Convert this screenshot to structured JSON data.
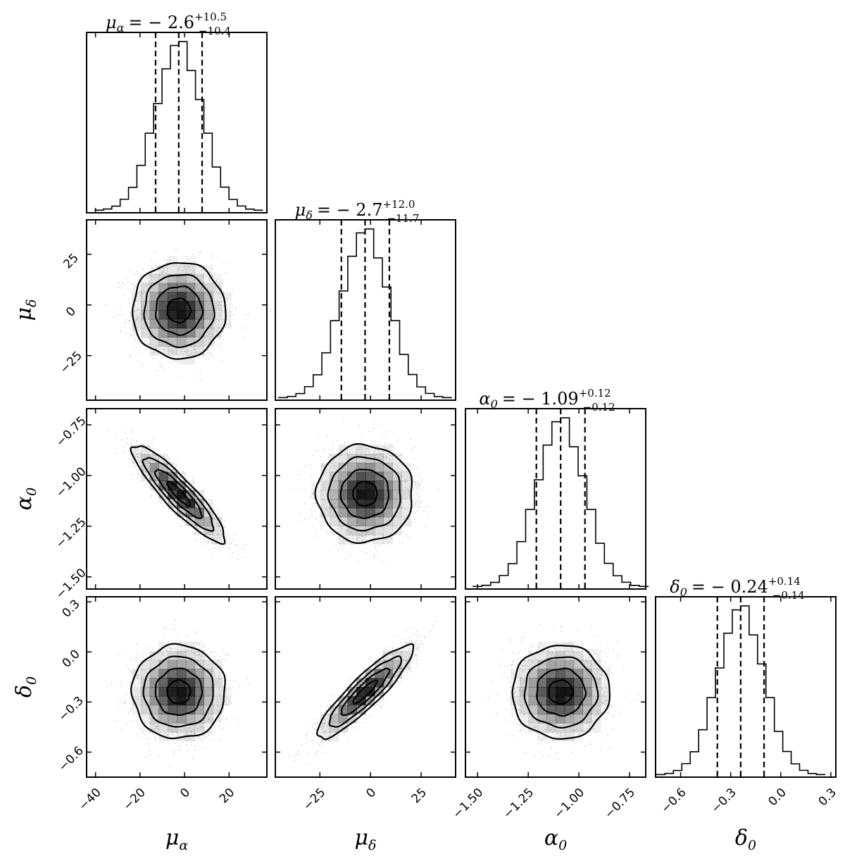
{
  "chart_data": {
    "type": "corner",
    "parameters": [
      {
        "key": "mu_alpha",
        "symbol": "μ",
        "subscript": "α",
        "range": [
          -44,
          37
        ],
        "ticks": [
          -40,
          -20,
          0,
          20
        ],
        "tick_labels": [
          "−40",
          "−20",
          "0",
          "20"
        ],
        "median": -2.6,
        "plus": 10.5,
        "minus": 10.4,
        "title": {
          "lhs": "μ",
          "lhs_sub": "α",
          "value": "= − 2.6",
          "upper": "+10.5",
          "lower": "−10.4"
        }
      },
      {
        "key": "mu_delta",
        "symbol": "μ",
        "subscript": "δ",
        "range": [
          -47,
          42
        ],
        "ticks": [
          -25,
          0,
          25
        ],
        "tick_labels": [
          "−25",
          "0",
          "25"
        ],
        "median": -2.7,
        "plus": 12.0,
        "minus": 11.7,
        "title": {
          "lhs": "μ",
          "lhs_sub": "δ",
          "value": "= − 2.7",
          "upper": "+12.0",
          "lower": "−11.7"
        }
      },
      {
        "key": "alpha_0",
        "symbol": "α",
        "subscript": "0",
        "range": [
          -1.56,
          -0.67
        ],
        "ticks": [
          -1.5,
          -1.25,
          -1.0,
          -0.75
        ],
        "tick_labels": [
          "−1.50",
          "−1.25",
          "−1.00",
          "−0.75"
        ],
        "median": -1.09,
        "plus": 0.12,
        "minus": 0.12,
        "title": {
          "lhs": "α",
          "lhs_sub": "0",
          "value": "= − 1.09",
          "upper": "+0.12",
          "lower": "−0.12"
        }
      },
      {
        "key": "delta_0",
        "symbol": "δ",
        "subscript": "0",
        "range": [
          -0.75,
          0.33
        ],
        "ticks": [
          -0.6,
          -0.3,
          0.0,
          0.3
        ],
        "tick_labels": [
          "−0.6",
          "−0.3",
          "0.0",
          "0.3"
        ],
        "median": -0.24,
        "plus": 0.14,
        "minus": 0.14,
        "title": {
          "lhs": "δ",
          "lhs_sub": "0",
          "value": "= − 0.24",
          "upper": "+0.14",
          "lower": "−0.14"
        }
      }
    ],
    "correlations": [
      [
        1,
        0,
        -0.9,
        0
      ],
      [
        0,
        1,
        0,
        0.9
      ],
      [
        -0.9,
        0,
        1,
        0
      ],
      [
        0,
        0.9,
        0,
        1
      ]
    ],
    "contour_levels_sigma": [
      0.5,
      1.0,
      1.5,
      2.0
    ],
    "histogram_bins": 20,
    "quantiles": [
      0.16,
      0.5,
      0.84
    ],
    "style": {
      "line_color": "#000000",
      "scatter_color": "#9a9a9a",
      "density_color": "#000000"
    }
  }
}
